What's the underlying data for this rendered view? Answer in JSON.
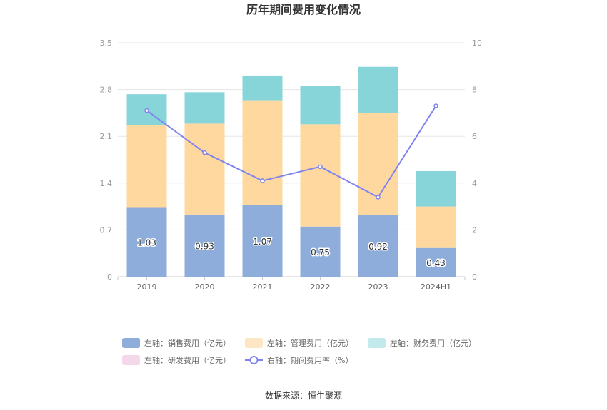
{
  "chart_data": {
    "type": "bar",
    "title": "历年期间费用变化情况",
    "categories": [
      "2019",
      "2020",
      "2021",
      "2022",
      "2023",
      "2024H1"
    ],
    "stacked": true,
    "left_axis": {
      "ylim": [
        0,
        3.5
      ],
      "ticks": [
        "0",
        "0.7",
        "1.4",
        "2.1",
        "2.8",
        "3.5"
      ]
    },
    "right_axis": {
      "ylim": [
        0,
        10
      ],
      "ticks": [
        "0",
        "2",
        "4",
        "6",
        "8",
        "10"
      ]
    },
    "series": [
      {
        "name": "左轴：销售费用（亿元）",
        "type": "bar",
        "color": "#8eaddb",
        "values": [
          1.03,
          0.93,
          1.07,
          0.75,
          0.92,
          0.43
        ],
        "labels": [
          "1.03",
          "0.93",
          "1.07",
          "0.75",
          "0.92",
          "0.43"
        ]
      },
      {
        "name": "左轴：管理费用（亿元）",
        "type": "bar",
        "color": "#fed89e",
        "values": [
          1.24,
          1.36,
          1.57,
          1.53,
          1.53,
          0.62
        ]
      },
      {
        "name": "左轴：财务费用（亿元）",
        "type": "bar",
        "color": "#88d5d9",
        "values": [
          0.46,
          0.47,
          0.37,
          0.57,
          0.69,
          0.53
        ]
      },
      {
        "name": "左轴：研发费用（亿元）",
        "type": "bar",
        "color": "#f3d8ea",
        "values": [
          0,
          0,
          0,
          0,
          0,
          0
        ]
      },
      {
        "name": "右轴：期间费用率（%）",
        "type": "line",
        "color": "#7f84ee",
        "values": [
          7.1,
          5.3,
          4.1,
          4.7,
          3.4,
          7.3
        ]
      }
    ],
    "legend_position": "bottom",
    "grid": true
  },
  "legend_colors": {
    "sales_bg": "#8eaddb",
    "admin_bg": "#fde6c3",
    "finance_bg": "#c2e9eb",
    "rnd_bg": "#f3d8ea"
  },
  "source": "数据来源：恒生聚源"
}
